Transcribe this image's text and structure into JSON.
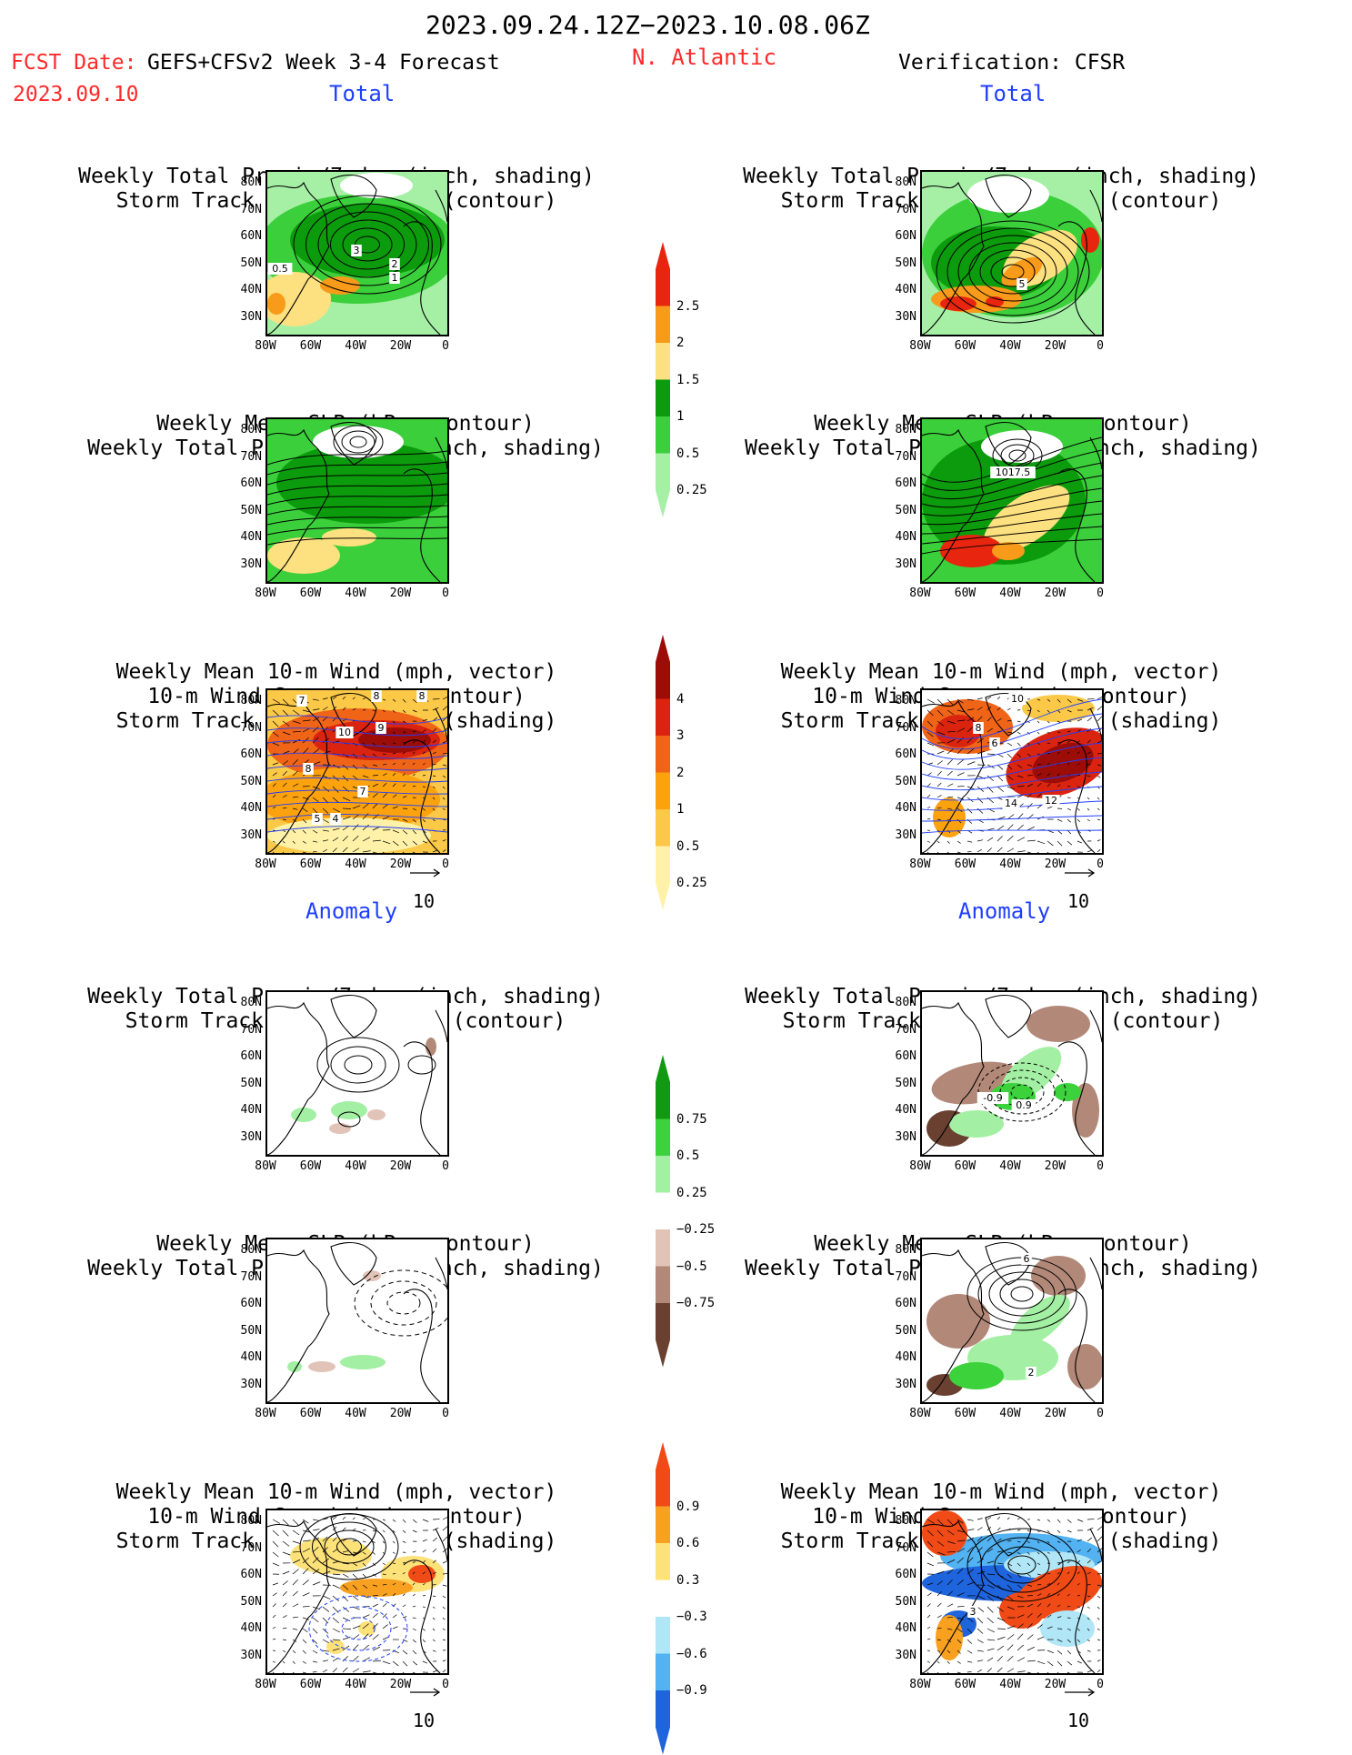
{
  "header": {
    "period": "2023.09.24.12Z−2023.10.08.06Z",
    "fcst_date_label": "FCST Date:",
    "fcst_date_value": "2023.09.10",
    "model": "GEFS+CFSv2 Week 3-4 Forecast",
    "region": "N. Atlantic",
    "verification": "Verification: CFSR"
  },
  "sections": {
    "total": "Total",
    "anomaly": "Anomaly"
  },
  "titles": {
    "precip_storm": [
      "Weekly Total Precip/7-day (inch, shading)",
      "Storm Track Density/7-day (contour)"
    ],
    "slp_precip": [
      "Weekly Mean SLP (hPa, contour)",
      "Weekly Total Precip/7-day (inch, shading)"
    ],
    "wind_storm": [
      "Weekly Mean 10-m Wind (mph, vector)",
      "10-m Wind Speed (mph, contour)",
      "Storm Track Density/7-day (shading)"
    ]
  },
  "axes": {
    "lat": [
      "80N",
      "70N",
      "60N",
      "50N",
      "40N",
      "30N"
    ],
    "lon": [
      "80W",
      "60W",
      "40W",
      "20W",
      "0"
    ]
  },
  "vector_ref": "10",
  "contour_labels": {
    "p1": [
      "3",
      "2",
      "1",
      "0.5"
    ],
    "p2": [
      "5"
    ],
    "p4": [
      "1017.5"
    ],
    "p5": [
      "7",
      "8",
      "10",
      "9",
      "8",
      "8",
      "7",
      "5",
      "4"
    ],
    "p6": [
      "10",
      "8",
      "6",
      "14",
      "12"
    ],
    "p8": [
      "-0.9",
      "0.9"
    ],
    "p10": [
      "6",
      "2"
    ],
    "p12": [
      "3"
    ]
  },
  "colorbars": {
    "precip_total": {
      "labels": [
        "2.5",
        "2",
        "1.5",
        "1",
        "0.5",
        "0.25"
      ],
      "colors": [
        "#e8250f",
        "#f89a1a",
        "#fde07f",
        "#0c9b0c",
        "#3bcf3b",
        "#a6f0a6"
      ]
    },
    "storm_total": {
      "labels": [
        "4",
        "3",
        "2",
        "1",
        "0.5",
        "0.25"
      ],
      "colors": [
        "#9c0d08",
        "#da2410",
        "#f06418",
        "#fba20e",
        "#fbc848",
        "#fff2a8"
      ]
    },
    "precip_anom": {
      "labels": [
        "0.75",
        "0.5",
        "0.25",
        "−0.25",
        "−0.5",
        "−0.75"
      ],
      "colors": [
        "#119911",
        "#3bd23b",
        "#a3efa3",
        "#ffffff",
        "#e2c3b8",
        "#b28878",
        "#6a4030"
      ]
    },
    "storm_anom": {
      "labels": [
        "0.9",
        "0.6",
        "0.3",
        "−0.3",
        "−0.6",
        "−0.9"
      ],
      "colors": [
        "#f04a16",
        "#f8a020",
        "#fde27a",
        "#ffffff",
        "#b0e6f6",
        "#52b2f2",
        "#1e64dc"
      ]
    }
  }
}
